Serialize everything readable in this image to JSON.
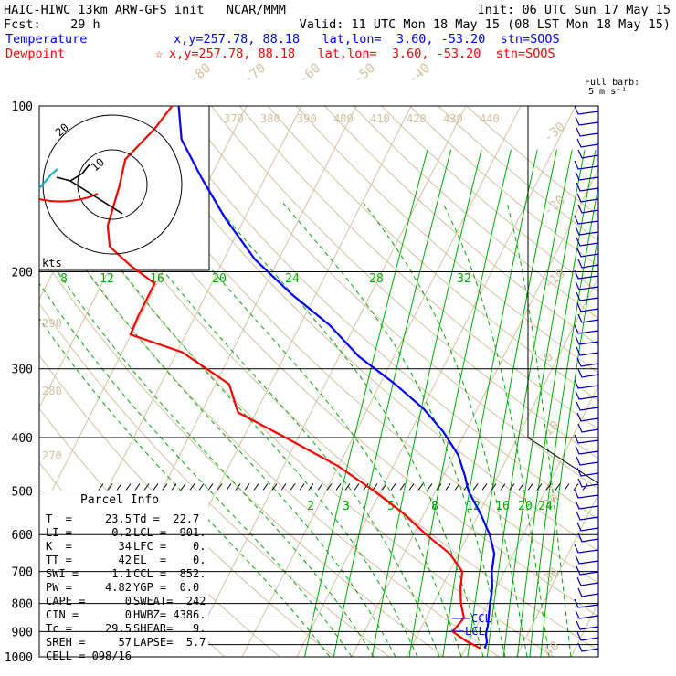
{
  "header": {
    "title": "HAIC-HIWC 13km ARW-GFS init   NCAR/MMM",
    "init": "Init: 06 UTC Sun 17 May 15",
    "fcst": "Fcst:    29 h",
    "valid": "Valid: 11 UTC Mon 18 May 15 (08 LST Mon 18 May 15)",
    "temp_label": "Temperature",
    "temp_info": "x,y=257.78, 88.18   lat,lon=  3.60, -53.20  stn=SOOS",
    "dew_label": "Dewpoint",
    "dew_info": "x,y=257.78, 88.18   lat,lon=  3.60, -53.20  stn=SOOS",
    "dew_marker": "☆"
  },
  "colors": {
    "temperature": "#0000ff",
    "dewpoint": "#ff0000",
    "isotherm": "#d2c1a0",
    "mixing_ratio": "#00aa00",
    "barb": "#0000aa"
  },
  "chart_data": {
    "type": "line",
    "chart_kind": "skew-T log-P sounding",
    "y_axis": "pressure (hPa), log scale",
    "pressure_ticks": [
      100,
      200,
      300,
      400,
      500,
      600,
      700,
      800,
      900,
      1000
    ],
    "isotherm_labels": [
      -80,
      -70,
      -60,
      -50,
      -40,
      -30,
      -20,
      -10,
      0,
      10,
      20,
      30,
      40
    ],
    "theta_labels": [
      370,
      380,
      390,
      400,
      410,
      420,
      430,
      440
    ],
    "theta_side_labels": [
      290,
      280,
      270
    ],
    "mixing_ratio_upper": [
      8,
      12,
      16,
      20,
      24,
      28,
      32
    ],
    "mixing_ratio_lower": [
      2,
      3,
      5,
      8,
      12,
      16,
      20,
      24
    ],
    "series": [
      {
        "name": "Temperature",
        "points": [
          [
            100,
            -82.4
          ],
          [
            115,
            -78.8
          ],
          [
            135,
            -71.6
          ],
          [
            160,
            -63.5
          ],
          [
            190,
            -54.3
          ],
          [
            220,
            -44.3
          ],
          [
            250,
            -34.6
          ],
          [
            285,
            -26.4
          ],
          [
            320,
            -17.2
          ],
          [
            355,
            -9.7
          ],
          [
            390,
            -4.1
          ],
          [
            430,
            0.8
          ],
          [
            470,
            4.0
          ],
          [
            500,
            6.0
          ],
          [
            550,
            10.3
          ],
          [
            600,
            13.9
          ],
          [
            650,
            16.5
          ],
          [
            700,
            17.7
          ],
          [
            750,
            19.3
          ],
          [
            800,
            20.3
          ],
          [
            850,
            21.4
          ],
          [
            880,
            22.0
          ],
          [
            910,
            22.4
          ],
          [
            940,
            23.3
          ],
          [
            965,
            23.5
          ]
        ]
      },
      {
        "name": "Dewpoint",
        "points": [
          [
            100,
            -83.6
          ],
          [
            110,
            -84.7
          ],
          [
            125,
            -87.2
          ],
          [
            140,
            -85.8
          ],
          [
            165,
            -84.3
          ],
          [
            180,
            -82.0
          ],
          [
            195,
            -76.4
          ],
          [
            210,
            -70.4
          ],
          [
            240,
            -70.4
          ],
          [
            260,
            -70.1
          ],
          [
            280,
            -59.0
          ],
          [
            320,
            -47.5
          ],
          [
            360,
            -43.3
          ],
          [
            400,
            -32.3
          ],
          [
            450,
            -20.2
          ],
          [
            500,
            -11.2
          ],
          [
            550,
            -3.7
          ],
          [
            600,
            2.3
          ],
          [
            650,
            8.4
          ],
          [
            700,
            12.3
          ],
          [
            750,
            13.5
          ],
          [
            800,
            15.0
          ],
          [
            850,
            16.9
          ],
          [
            900,
            16.1
          ],
          [
            935,
            19.3
          ],
          [
            965,
            22.7
          ]
        ]
      }
    ],
    "hodograph": {
      "ring_labels": [
        "20",
        "10"
      ],
      "units": "kts"
    },
    "wind_barbs": {
      "label": "Full barb:",
      "unit": "5 m s⁻¹"
    },
    "ccl_label": "CCL",
    "lcl_label": "LCL",
    "parcel_info": {
      "title": "Parcel Info",
      "rows": [
        [
          "T  =     23.5",
          "Td =  22.7"
        ],
        [
          "LI =      0.2",
          "LCL =  901."
        ],
        [
          "K  =       34",
          "LFC =    0."
        ],
        [
          "TT =       42",
          "EL  =    0."
        ],
        [
          "SWI =     1.1",
          "CCL =  852."
        ],
        [
          "PW =     4.82",
          "YGP =  0.0"
        ],
        [
          "CAPE =      0",
          "SWEAT=  242"
        ],
        [
          "CIN =       0",
          "HWBZ= 4386."
        ],
        [
          "Tc =     29.5",
          "SHEAR=   9."
        ],
        [
          "SREH =     57",
          "LAPSE=  5.7"
        ],
        [
          "CELL = 098/16",
          ""
        ]
      ]
    }
  }
}
